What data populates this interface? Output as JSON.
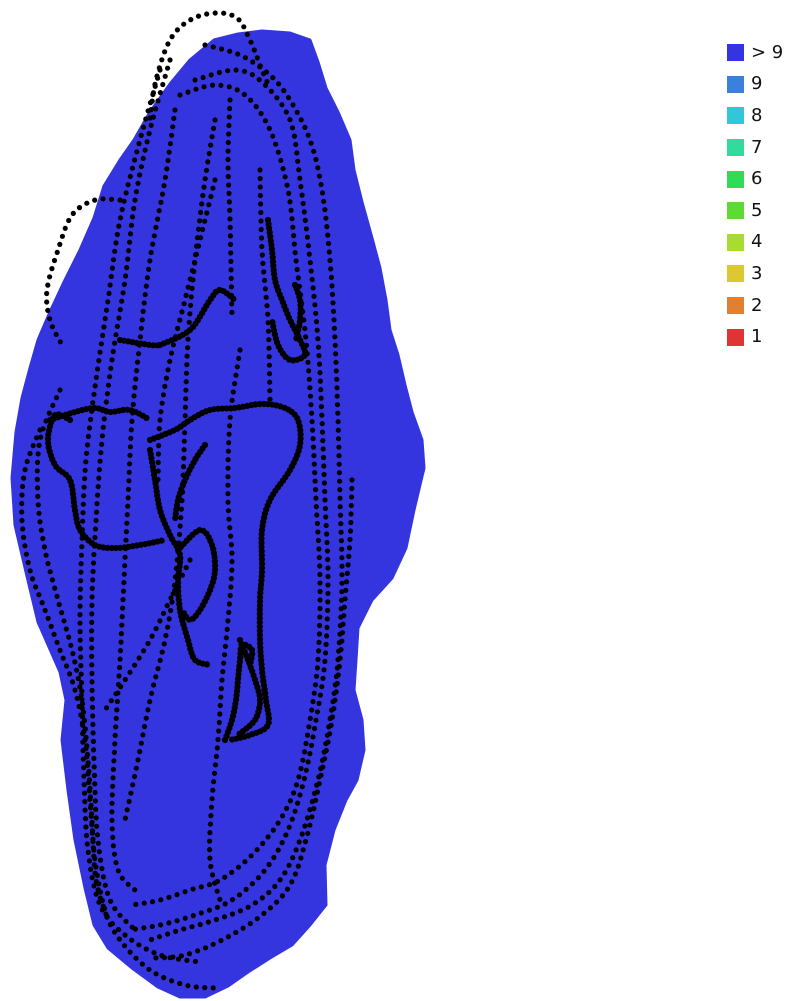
{
  "legend": {
    "items": [
      {
        "label": "> 9",
        "color": "#3535df"
      },
      {
        "label": "9",
        "color": "#3b80db"
      },
      {
        "label": "8",
        "color": "#2ec8d9"
      },
      {
        "label": "7",
        "color": "#2fdc9c"
      },
      {
        "label": "6",
        "color": "#2fdb57"
      },
      {
        "label": "5",
        "color": "#5ddb30"
      },
      {
        "label": "4",
        "color": "#a8dc30"
      },
      {
        "label": "3",
        "color": "#dcc830"
      },
      {
        "label": "2",
        "color": "#e08030"
      },
      {
        "label": "1",
        "color": "#e03434"
      }
    ]
  },
  "map": {
    "area_color": "#3535df",
    "track_color": "#000000"
  }
}
